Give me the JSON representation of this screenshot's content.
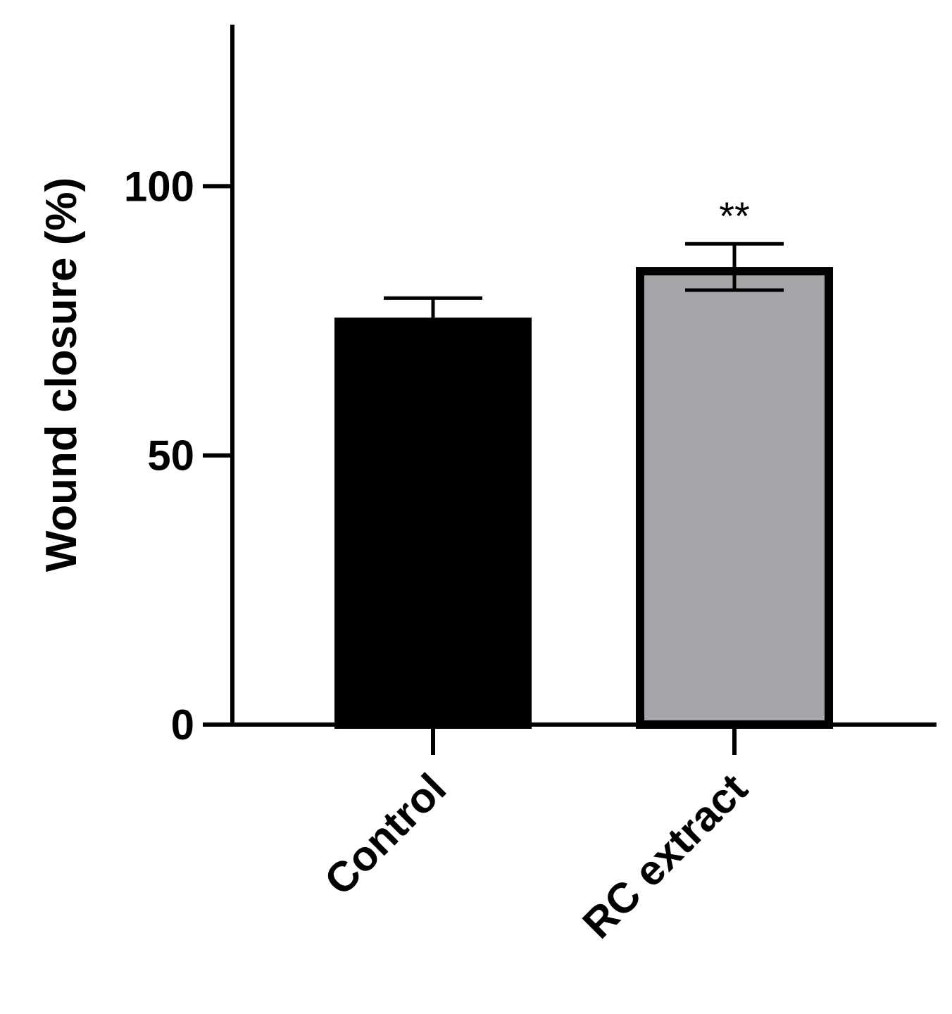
{
  "chart_data": {
    "type": "bar",
    "y_label": "Wound closure (%)",
    "categories": [
      "Control",
      "RC extract"
    ],
    "values": [
      75.6,
      85
    ],
    "errors": [
      3.6,
      4.3
    ],
    "colors": [
      "#000000",
      "#a6a5aa"
    ],
    "significance": [
      null,
      "**"
    ],
    "ylim": [
      0,
      130
    ],
    "yticks": [
      0,
      50,
      100
    ],
    "grid": false
  }
}
